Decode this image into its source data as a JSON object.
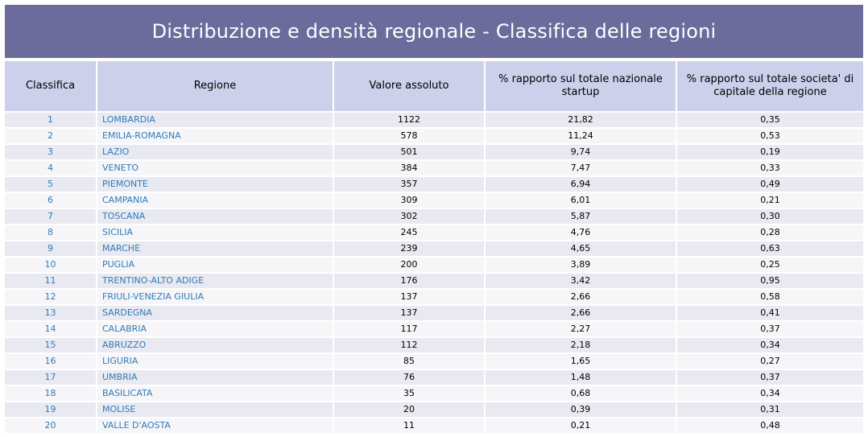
{
  "title": "Distribuzione e densità regionale - Classifica delle regioni",
  "table": {
    "headers": [
      "Classifica",
      "Regione",
      "Valore assoluto",
      "% rapporto sul totale nazionale startup",
      "% rapporto sul totale societa' di capitale della regione"
    ],
    "rows": [
      [
        "1",
        "LOMBARDIA",
        "1122",
        "21,82",
        "0,35"
      ],
      [
        "2",
        "EMILIA-ROMAGNA",
        "578",
        "11,24",
        "0,53"
      ],
      [
        "3",
        "LAZIO",
        "501",
        "9,74",
        "0,19"
      ],
      [
        "4",
        "VENETO",
        "384",
        "7,47",
        "0,33"
      ],
      [
        "5",
        "PIEMONTE",
        "357",
        "6,94",
        "0,49"
      ],
      [
        "6",
        "CAMPANIA",
        "309",
        "6,01",
        "0,21"
      ],
      [
        "7",
        "TOSCANA",
        "302",
        "5,87",
        "0,30"
      ],
      [
        "8",
        "SICILIA",
        "245",
        "4,76",
        "0,28"
      ],
      [
        "9",
        "MARCHE",
        "239",
        "4,65",
        "0,63"
      ],
      [
        "10",
        "PUGLIA",
        "200",
        "3,89",
        "0,25"
      ],
      [
        "11",
        "TRENTINO-ALTO ADIGE",
        "176",
        "3,42",
        "0,95"
      ],
      [
        "12",
        "FRIULI-VENEZIA GIULIA",
        "137",
        "2,66",
        "0,58"
      ],
      [
        "13",
        "SARDEGNA",
        "137",
        "2,66",
        "0,41"
      ],
      [
        "14",
        "CALABRIA",
        "117",
        "2,27",
        "0,37"
      ],
      [
        "15",
        "ABRUZZO",
        "112",
        "2,18",
        "0,34"
      ],
      [
        "16",
        "LIGURIA",
        "85",
        "1,65",
        "0,27"
      ],
      [
        "17",
        "UMBRIA",
        "76",
        "1,48",
        "0,37"
      ],
      [
        "18",
        "BASILICATA",
        "35",
        "0,68",
        "0,34"
      ],
      [
        "19",
        "MOLISE",
        "20",
        "0,39",
        "0,31"
      ],
      [
        "20",
        "VALLE D'AOSTA",
        "11",
        "0,21",
        "0,48"
      ]
    ]
  },
  "colors": {
    "title_bg": "#6b6b9c",
    "header_bg": "#ccd0eb",
    "link_text": "#2e7cb8"
  }
}
